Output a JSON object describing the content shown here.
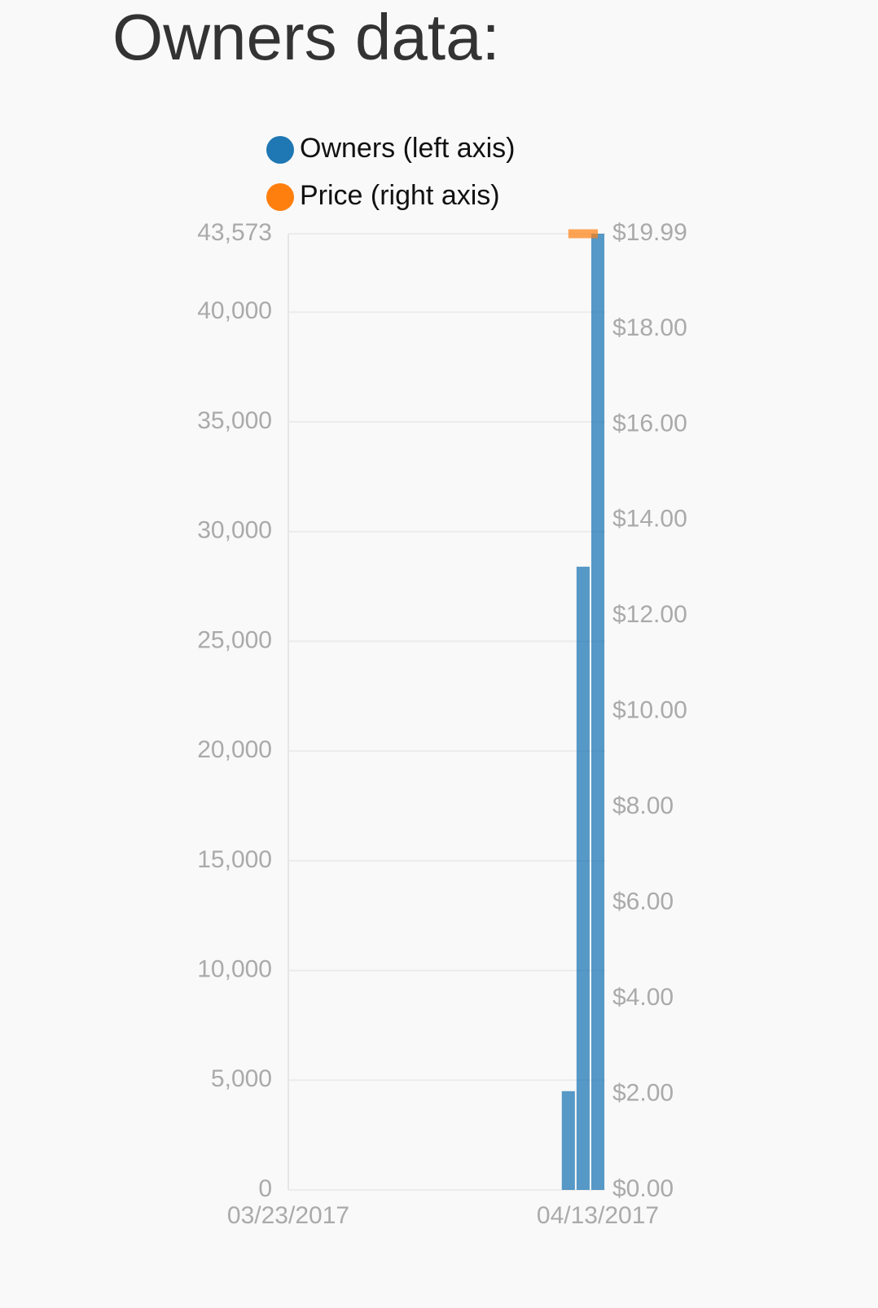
{
  "chart_data": {
    "type": "bar+line",
    "title": "Owners data:",
    "x": [
      "04/11/2017",
      "04/12/2017",
      "04/13/2017"
    ],
    "xlim": [
      "03/23/2017",
      "04/13/2017"
    ],
    "xticks": [
      "03/23/2017",
      "04/13/2017"
    ],
    "series": [
      {
        "name": "Owners (left axis)",
        "color": "#1f77b4",
        "type": "bar",
        "values": [
          4500,
          28400,
          43573
        ]
      },
      {
        "name": "Price (right axis)",
        "color": "#ff7f0e",
        "type": "line",
        "axis": "y2",
        "values": [
          19.99,
          19.99,
          19.99
        ]
      }
    ],
    "ylim": [
      0,
      43573
    ],
    "yticks": [
      0,
      {
        "value": 5000,
        "label": "5,000"
      },
      {
        "value": 10000,
        "label": "10,000"
      },
      {
        "value": 15000,
        "label": "15,000"
      },
      {
        "value": 20000,
        "label": "20,000"
      },
      {
        "value": 25000,
        "label": "25,000"
      },
      {
        "value": 30000,
        "label": "30,000"
      },
      {
        "value": 35000,
        "label": "35,000"
      },
      {
        "value": 40000,
        "label": "40,000"
      },
      {
        "value": 43573,
        "label": "43,573"
      }
    ],
    "y2lim": [
      0,
      19.99
    ],
    "y2ticks": [
      {
        "value": 0,
        "label": "$0.00"
      },
      {
        "value": 2,
        "label": "$2.00"
      },
      {
        "value": 4,
        "label": "$4.00"
      },
      {
        "value": 6,
        "label": "$6.00"
      },
      {
        "value": 8,
        "label": "$8.00"
      },
      {
        "value": 10,
        "label": "$10.00"
      },
      {
        "value": 12,
        "label": "$12.00"
      },
      {
        "value": 14,
        "label": "$14.00"
      },
      {
        "value": 16,
        "label": "$16.00"
      },
      {
        "value": 18,
        "label": "$18.00"
      },
      {
        "value": 19.99,
        "label": "$19.99"
      }
    ],
    "grid": true
  }
}
